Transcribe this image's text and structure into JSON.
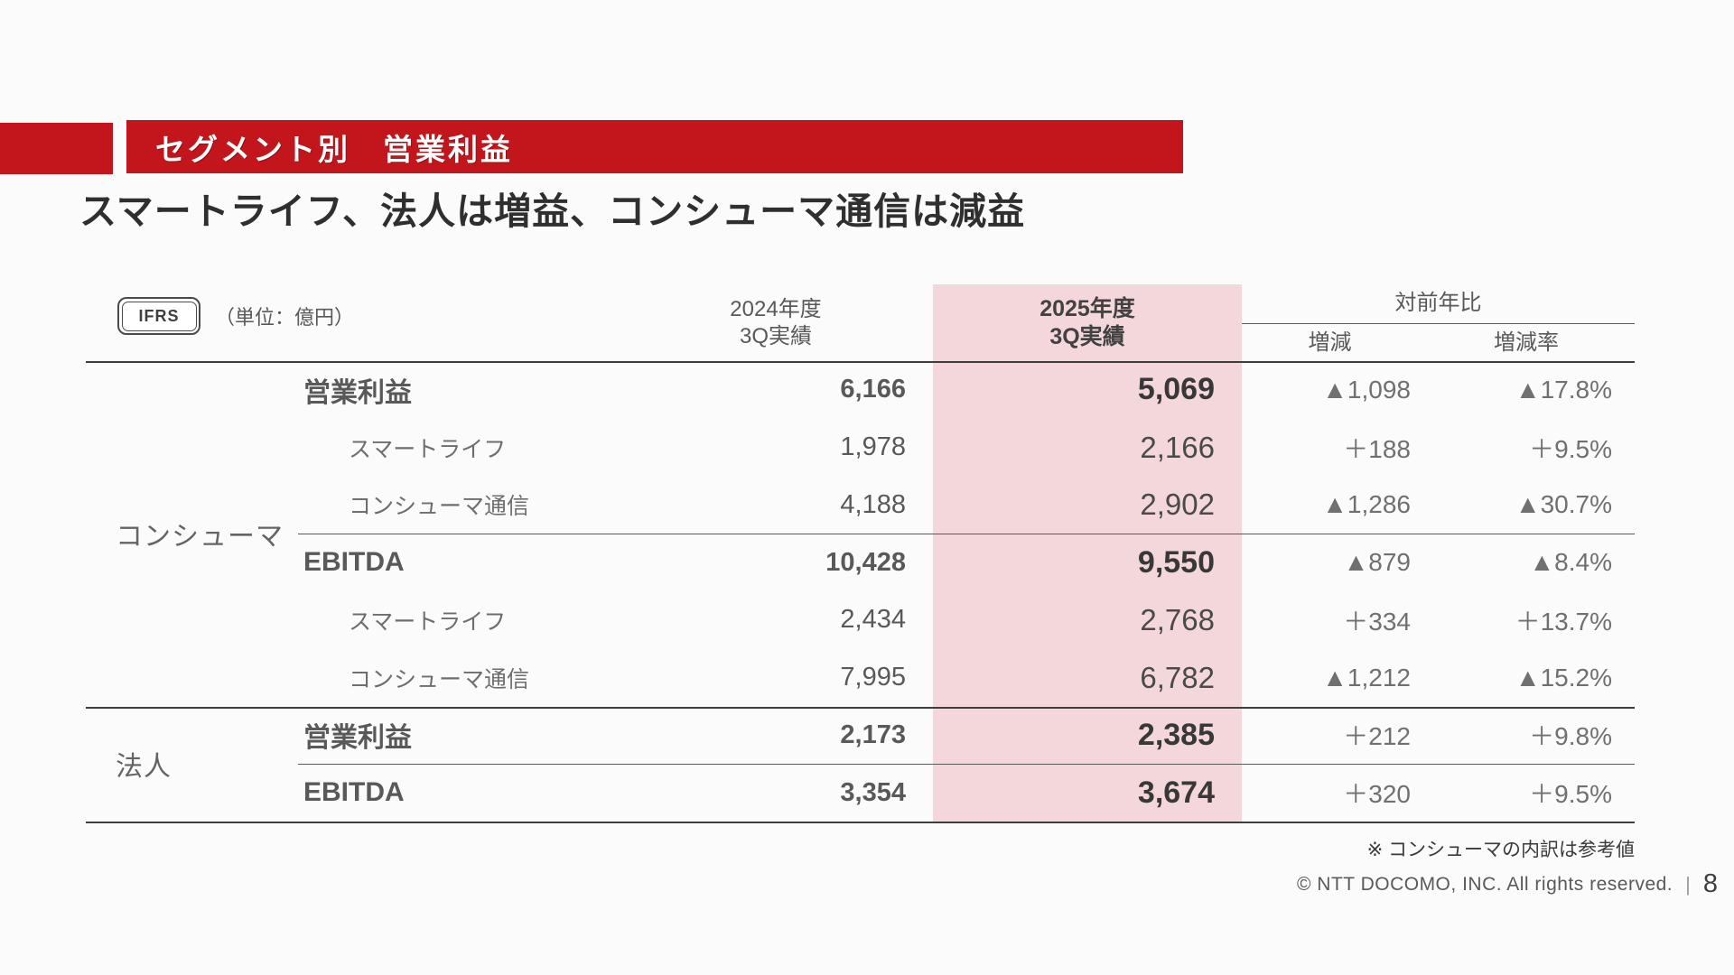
{
  "slide": {
    "title": "セグメント別　営業利益",
    "headline": "スマートライフ、法人は増益、コンシューマ通信は減益",
    "ifrs_badge": "IFRS",
    "unit_label": "（単位：億円）",
    "footnote": "※ コンシューマの内訳は参考値",
    "copyright": "© NTT DOCOMO, INC.  All rights reserved.",
    "page_separator": "|",
    "page_number": "8"
  },
  "table": {
    "headers": {
      "fy2024_line1": "2024年度",
      "fy2024_line2": "3Q実績",
      "fy2025_line1": "2025年度",
      "fy2025_line2": "3Q実績",
      "yoy": "対前年比",
      "change": "増減",
      "change_rate": "増減率"
    },
    "groups": [
      {
        "name": "コンシューマ",
        "rows": [
          {
            "label": "営業利益",
            "emphasis": true,
            "indent": false,
            "fy2024": "6,166",
            "fy2025": "5,069",
            "change": "▲1,098",
            "change_rate": "▲17.8%"
          },
          {
            "label": "スマートライフ",
            "emphasis": false,
            "indent": true,
            "fy2024": "1,978",
            "fy2025": "2,166",
            "change": "＋188",
            "change_rate": "＋9.5%"
          },
          {
            "label": "コンシューマ通信",
            "emphasis": false,
            "indent": true,
            "fy2024": "4,188",
            "fy2025": "2,902",
            "change": "▲1,286",
            "change_rate": "▲30.7%"
          },
          {
            "label": "EBITDA",
            "emphasis": true,
            "indent": false,
            "fy2024": "10,428",
            "fy2025": "9,550",
            "change": "▲879",
            "change_rate": "▲8.4%"
          },
          {
            "label": "スマートライフ",
            "emphasis": false,
            "indent": true,
            "fy2024": "2,434",
            "fy2025": "2,768",
            "change": "＋334",
            "change_rate": "＋13.7%"
          },
          {
            "label": "コンシューマ通信",
            "emphasis": false,
            "indent": true,
            "fy2024": "7,995",
            "fy2025": "6,782",
            "change": "▲1,212",
            "change_rate": "▲15.2%"
          }
        ]
      },
      {
        "name": "法人",
        "rows": [
          {
            "label": "営業利益",
            "emphasis": true,
            "indent": false,
            "fy2024": "2,173",
            "fy2025": "2,385",
            "change": "＋212",
            "change_rate": "＋9.8%"
          },
          {
            "label": "EBITDA",
            "emphasis": true,
            "indent": false,
            "fy2024": "3,354",
            "fy2025": "3,674",
            "change": "＋320",
            "change_rate": "＋9.5%"
          }
        ]
      }
    ]
  },
  "colors": {
    "accent_red": "#C3161C",
    "highlight_pink": "#F4D7DB"
  }
}
